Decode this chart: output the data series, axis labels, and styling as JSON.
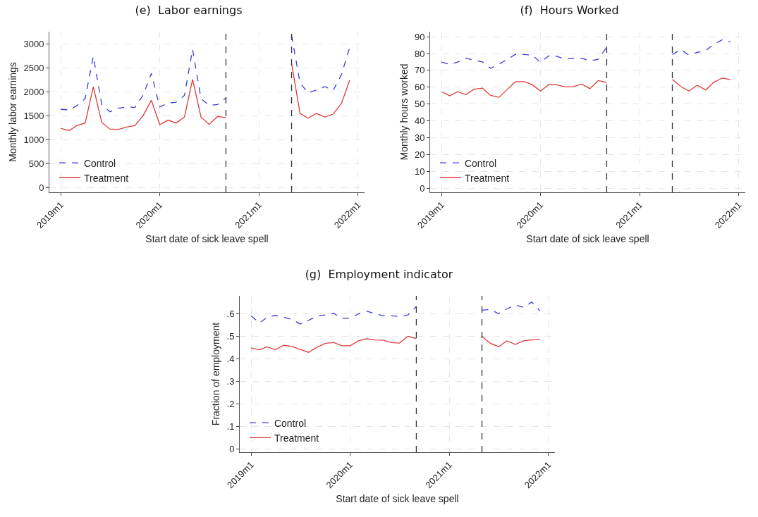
{
  "chart_data": [
    {
      "type": "line",
      "title": "(e)  Labor earnings",
      "xlabel": "Start date of sick leave spell",
      "ylabel": "Monthly labor earnings",
      "x": [
        "2019-01",
        "2019-02",
        "2019-03",
        "2019-04",
        "2019-05",
        "2019-06",
        "2019-07",
        "2019-08",
        "2019-09",
        "2019-10",
        "2019-11",
        "2019-12",
        "2020-01",
        "2020-02",
        "2020-03",
        "2020-04",
        "2020-05",
        "2020-06",
        "2020-07",
        "2020-08",
        "2020-09",
        "2020-10",
        "2020-11",
        "2020-12",
        "2021-01",
        "2021-02",
        "2021-03",
        "2021-04",
        "2021-05",
        "2021-06",
        "2021-07",
        "2021-08",
        "2021-09",
        "2021-10",
        "2021-11",
        "2021-12"
      ],
      "series": [
        {
          "name": "Control",
          "color": "#3a3ae0",
          "line_style": "dashed",
          "values": [
            1630,
            1620,
            1705,
            1855,
            2735,
            1735,
            1580,
            1655,
            1680,
            1670,
            1930,
            2380,
            1680,
            1760,
            1780,
            1920,
            2880,
            1855,
            1715,
            1730,
            1870,
            null,
            null,
            null,
            null,
            null,
            null,
            null,
            3170,
            2185,
            1970,
            2035,
            2105,
            2020,
            2355,
            2920
          ]
        },
        {
          "name": "Treatment",
          "color": "#e03a3a",
          "line_style": "solid",
          "values": [
            1230,
            1190,
            1290,
            1345,
            2100,
            1360,
            1220,
            1210,
            1260,
            1290,
            1500,
            1820,
            1310,
            1405,
            1345,
            1470,
            2255,
            1470,
            1315,
            1480,
            1460,
            null,
            null,
            null,
            null,
            null,
            null,
            null,
            2595,
            1545,
            1445,
            1545,
            1470,
            1530,
            1755,
            2235
          ]
        }
      ],
      "xlim": [
        "2018-11-20",
        "2022-01-25"
      ],
      "xticks": [
        {
          "value": "2019-01",
          "label": "2019m1"
        },
        {
          "value": "2020-01",
          "label": "2020m1"
        },
        {
          "value": "2021-01",
          "label": "2021m1"
        },
        {
          "value": "2022-01",
          "label": "2022m1"
        }
      ],
      "ylim": [
        -100,
        3250
      ],
      "yticks": [
        0,
        500,
        1000,
        1500,
        2000,
        2500,
        3000
      ],
      "ref_lines": [
        {
          "axis": "x",
          "value": "2020-09",
          "color": "#333333",
          "line_style": "dashed"
        },
        {
          "axis": "x",
          "value": "2021-05",
          "color": "#333333",
          "line_style": "dashed"
        }
      ],
      "grid": true,
      "legend": "bottom left"
    },
    {
      "type": "line",
      "title": "(f)  Hours Worked",
      "xlabel": "Start date of sick leave spell",
      "ylabel": "Monthly hours worked",
      "x": [
        "2019-01",
        "2019-02",
        "2019-03",
        "2019-04",
        "2019-05",
        "2019-06",
        "2019-07",
        "2019-08",
        "2019-09",
        "2019-10",
        "2019-11",
        "2019-12",
        "2020-01",
        "2020-02",
        "2020-03",
        "2020-04",
        "2020-05",
        "2020-06",
        "2020-07",
        "2020-08",
        "2020-09",
        "2020-10",
        "2020-11",
        "2020-12",
        "2021-01",
        "2021-02",
        "2021-03",
        "2021-04",
        "2021-05",
        "2021-06",
        "2021-07",
        "2021-08",
        "2021-09",
        "2021-10",
        "2021-11",
        "2021-12"
      ],
      "series": [
        {
          "name": "Control",
          "color": "#3a3ae0",
          "line_style": "dashed",
          "values": [
            74.9,
            73.5,
            74.9,
            77.2,
            76.0,
            75.0,
            71.2,
            73.6,
            76.6,
            79.5,
            79.4,
            79.1,
            74.8,
            78.7,
            78.4,
            76.6,
            77.2,
            77.2,
            75.7,
            76.6,
            83.8,
            null,
            null,
            null,
            null,
            null,
            null,
            null,
            79.4,
            82.4,
            79.1,
            80.7,
            81.8,
            85.6,
            88.2,
            86.9
          ]
        },
        {
          "name": "Treatment",
          "color": "#e03a3a",
          "line_style": "solid",
          "values": [
            57.3,
            54.9,
            57.3,
            55.6,
            58.8,
            59.4,
            55.1,
            54.0,
            58.7,
            63.3,
            63.3,
            61.5,
            57.7,
            61.6,
            61.4,
            60.2,
            60.4,
            61.8,
            59.1,
            63.9,
            62.9,
            null,
            null,
            null,
            null,
            null,
            null,
            null,
            64.6,
            60.4,
            57.7,
            61.2,
            58.3,
            63.0,
            65.4,
            64.6
          ]
        }
      ],
      "xlim": [
        "2018-11-20",
        "2022-01-25"
      ],
      "xticks": [
        {
          "value": "2019-01",
          "label": "2019m1"
        },
        {
          "value": "2020-01",
          "label": "2020m1"
        },
        {
          "value": "2021-01",
          "label": "2021m1"
        },
        {
          "value": "2022-01",
          "label": "2022m1"
        }
      ],
      "ylim": [
        -2.5,
        93
      ],
      "yticks": [
        0,
        10,
        20,
        30,
        40,
        50,
        60,
        70,
        80,
        90
      ],
      "ref_lines": [
        {
          "axis": "x",
          "value": "2020-09",
          "color": "#333333",
          "line_style": "dashed"
        },
        {
          "axis": "x",
          "value": "2021-05",
          "color": "#333333",
          "line_style": "dashed"
        }
      ],
      "grid": true,
      "legend": "bottom left"
    },
    {
      "type": "line",
      "title": "(g)  Employment indicator",
      "xlabel": "Start date of sick leave spell",
      "ylabel": "Fraction of employment",
      "x": [
        "2019-01",
        "2019-02",
        "2019-03",
        "2019-04",
        "2019-05",
        "2019-06",
        "2019-07",
        "2019-08",
        "2019-09",
        "2019-10",
        "2019-11",
        "2019-12",
        "2020-01",
        "2020-02",
        "2020-03",
        "2020-04",
        "2020-05",
        "2020-06",
        "2020-07",
        "2020-08",
        "2020-09",
        "2020-10",
        "2020-11",
        "2020-12",
        "2021-01",
        "2021-02",
        "2021-03",
        "2021-04",
        "2021-05",
        "2021-06",
        "2021-07",
        "2021-08",
        "2021-09",
        "2021-10",
        "2021-11",
        "2021-12"
      ],
      "series": [
        {
          "name": "Control",
          "color": "#3a3ae0",
          "line_style": "dashed",
          "values": [
            0.591,
            0.559,
            0.585,
            0.593,
            0.585,
            0.575,
            0.555,
            0.571,
            0.591,
            0.595,
            0.603,
            0.58,
            0.58,
            0.6,
            0.612,
            0.601,
            0.592,
            0.591,
            0.589,
            0.595,
            0.632,
            null,
            null,
            null,
            null,
            null,
            null,
            null,
            0.616,
            0.619,
            0.601,
            0.622,
            0.639,
            0.629,
            0.652,
            0.613
          ]
        },
        {
          "name": "Treatment",
          "color": "#e03a3a",
          "line_style": "solid",
          "values": [
            0.448,
            0.44,
            0.453,
            0.44,
            0.46,
            0.455,
            0.442,
            0.429,
            0.452,
            0.468,
            0.473,
            0.458,
            0.458,
            0.48,
            0.489,
            0.484,
            0.483,
            0.472,
            0.47,
            0.5,
            0.49,
            null,
            null,
            null,
            null,
            null,
            null,
            null,
            0.5,
            0.469,
            0.454,
            0.48,
            0.464,
            0.48,
            0.484,
            0.487
          ]
        }
      ],
      "xlim": [
        "2018-11-20",
        "2022-01-25"
      ],
      "xticks": [
        {
          "value": "2019-01",
          "label": "2019m1"
        },
        {
          "value": "2020-01",
          "label": "2020m1"
        },
        {
          "value": "2021-01",
          "label": "2021m1"
        },
        {
          "value": "2022-01",
          "label": "2022m1"
        }
      ],
      "ylim": [
        -0.015,
        0.68
      ],
      "yticks": [
        0,
        {
          "value": 0.1,
          "label": ".1"
        },
        {
          "value": 0.2,
          "label": ".2"
        },
        {
          "value": 0.3,
          "label": ".3"
        },
        {
          "value": 0.4,
          "label": ".4"
        },
        {
          "value": 0.5,
          "label": ".5"
        },
        {
          "value": 0.6,
          "label": ".6"
        }
      ],
      "ref_lines": [
        {
          "axis": "x",
          "value": "2020-09",
          "color": "#333333",
          "line_style": "dashed"
        },
        {
          "axis": "x",
          "value": "2021-05",
          "color": "#333333",
          "line_style": "dashed"
        }
      ],
      "grid": true,
      "legend": "bottom left"
    }
  ]
}
